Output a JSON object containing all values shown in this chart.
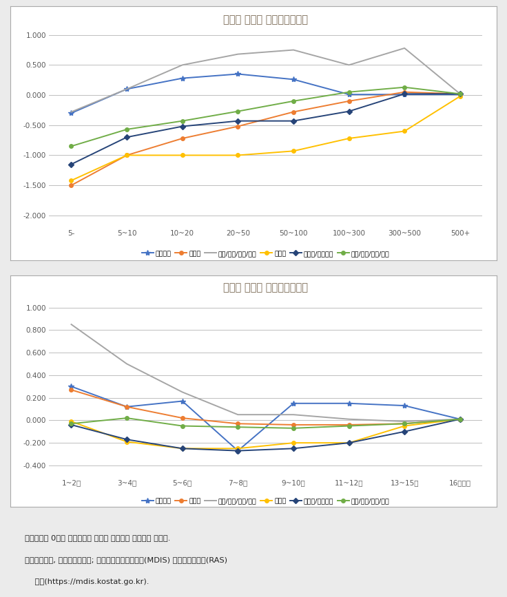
{
  "chart1": {
    "title": "사업체 규모와 순일자리증가율",
    "x_labels": [
      "5-",
      "5~10",
      "10~20",
      "20~50",
      "50~100",
      "100~300",
      "300~500",
      "500+"
    ],
    "ylim": [
      -2.2,
      1.1
    ],
    "yticks": [
      -2.0,
      -1.5,
      -1.0,
      -0.5,
      0.0,
      0.5,
      1.0
    ],
    "series": {
      "농림어업": {
        "values": [
          -0.3,
          0.1,
          0.28,
          0.35,
          0.26,
          0.01,
          0.01,
          0.01
        ]
      },
      "광공업": {
        "values": [
          -1.5,
          -1.0,
          -0.72,
          -0.52,
          -0.28,
          -0.1,
          0.05,
          0.02
        ]
      },
      "전기/운수/통신/금융": {
        "values": [
          -0.28,
          0.1,
          0.5,
          0.68,
          0.75,
          0.5,
          0.78,
          0.02
        ]
      },
      "건설업": {
        "values": [
          -1.42,
          -1.0,
          -1.0,
          -1.0,
          -0.93,
          -0.72,
          -0.6,
          -0.02
        ]
      },
      "도소매/음식숙박": {
        "values": [
          -1.15,
          -0.7,
          -0.52,
          -0.43,
          -0.43,
          -0.27,
          0.02,
          0.02
        ]
      },
      "사업/개인/공공/기타": {
        "values": [
          -0.85,
          -0.57,
          -0.43,
          -0.27,
          -0.1,
          0.05,
          0.13,
          0.02
        ]
      }
    }
  },
  "chart2": {
    "title": "사업체 업력과 순일자리증가율",
    "x_labels": [
      "1~2년",
      "3~4년",
      "5~6년",
      "7~8년",
      "9~10년",
      "11~12년",
      "13~15년",
      "16년이상"
    ],
    "ylim": [
      -0.5,
      1.1
    ],
    "yticks": [
      -0.4,
      -0.2,
      0.0,
      0.2,
      0.4,
      0.6,
      0.8,
      1.0
    ],
    "series": {
      "농림어업": {
        "values": [
          0.3,
          0.12,
          0.17,
          -0.27,
          0.15,
          0.15,
          0.13,
          0.01
        ]
      },
      "광공업": {
        "values": [
          0.27,
          0.12,
          0.02,
          -0.03,
          -0.04,
          -0.04,
          -0.03,
          0.01
        ]
      },
      "전기/운수/통신/금융": {
        "values": [
          0.85,
          0.5,
          0.25,
          0.05,
          0.05,
          0.01,
          -0.01,
          0.01
        ]
      },
      "건설업": {
        "values": [
          -0.01,
          -0.19,
          -0.25,
          -0.25,
          -0.2,
          -0.2,
          -0.05,
          0.01
        ]
      },
      "도소매/음식숙박": {
        "values": [
          -0.04,
          -0.17,
          -0.25,
          -0.27,
          -0.25,
          -0.2,
          -0.1,
          0.01
        ]
      },
      "사업/개인/공공/기타": {
        "values": [
          -0.03,
          0.02,
          -0.05,
          -0.06,
          -0.07,
          -0.05,
          -0.03,
          0.01
        ]
      }
    }
  },
  "legend_order": [
    "농림어업",
    "광공업",
    "전기/운수/통신/금융",
    "건설업",
    "도소매/음식숙박",
    "사업/개인/공공/기타"
  ],
  "colors": {
    "농림어업": "#4472C4",
    "광공업": "#ED7D31",
    "전기/운수/통신/금융": "#A5A5A5",
    "건설업": "#FFC000",
    "도소매/음식숙박": "#264478",
    "사업/개인/공공/기타": "#70AD47"
  },
  "markers": {
    "농림어업": "*",
    "광공업": "o",
    "전기/운수/통신/금융": "",
    "건설업": "o",
    "도소매/음식숙박": "D",
    "사업/개인/공공/기타": "o"
  },
  "note_line1": "주：업력이 0년인 진입사업체 집단의 추정치는 그림에서 제외함.",
  "note_line2": "자료：통계청, 전국사업체조사; 마이크로데이터서비스(MDIS) 원격접근서비스(RAS)",
  "note_line3": "    활용(https://mdis.kostat.go.kr).",
  "outer_bg": "#EBEBEB",
  "chart_bg": "#FFFFFF",
  "title_color": "#7B6A55",
  "tick_color": "#595959",
  "grid_color": "#BFBFBF"
}
